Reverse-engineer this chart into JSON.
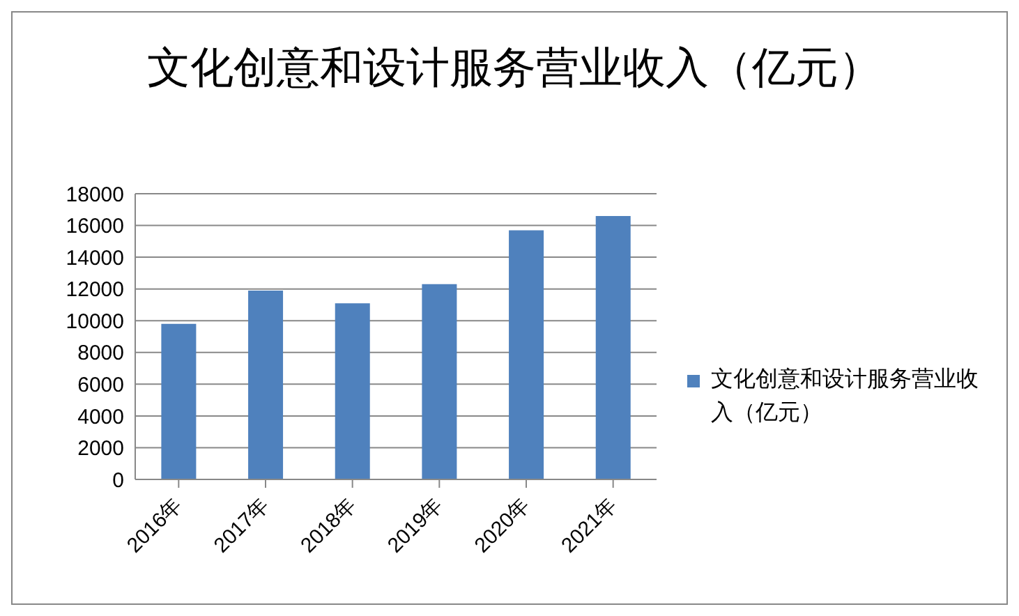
{
  "chart_data": {
    "type": "bar",
    "title": "文化创意和设计服务营业收入（亿元）",
    "categories": [
      "2016年",
      "2017年",
      "2018年",
      "2019年",
      "2020年",
      "2021年"
    ],
    "series": [
      {
        "name": "文化创意和设计服务营业收入（亿元）",
        "color": "#4f81bd",
        "values": [
          9800,
          11900,
          11100,
          12300,
          15700,
          16600
        ]
      }
    ],
    "ylim": [
      0,
      18000
    ],
    "yticks": [
      0,
      2000,
      4000,
      6000,
      8000,
      10000,
      12000,
      14000,
      16000,
      18000
    ],
    "grid": "y",
    "legend": "right"
  }
}
